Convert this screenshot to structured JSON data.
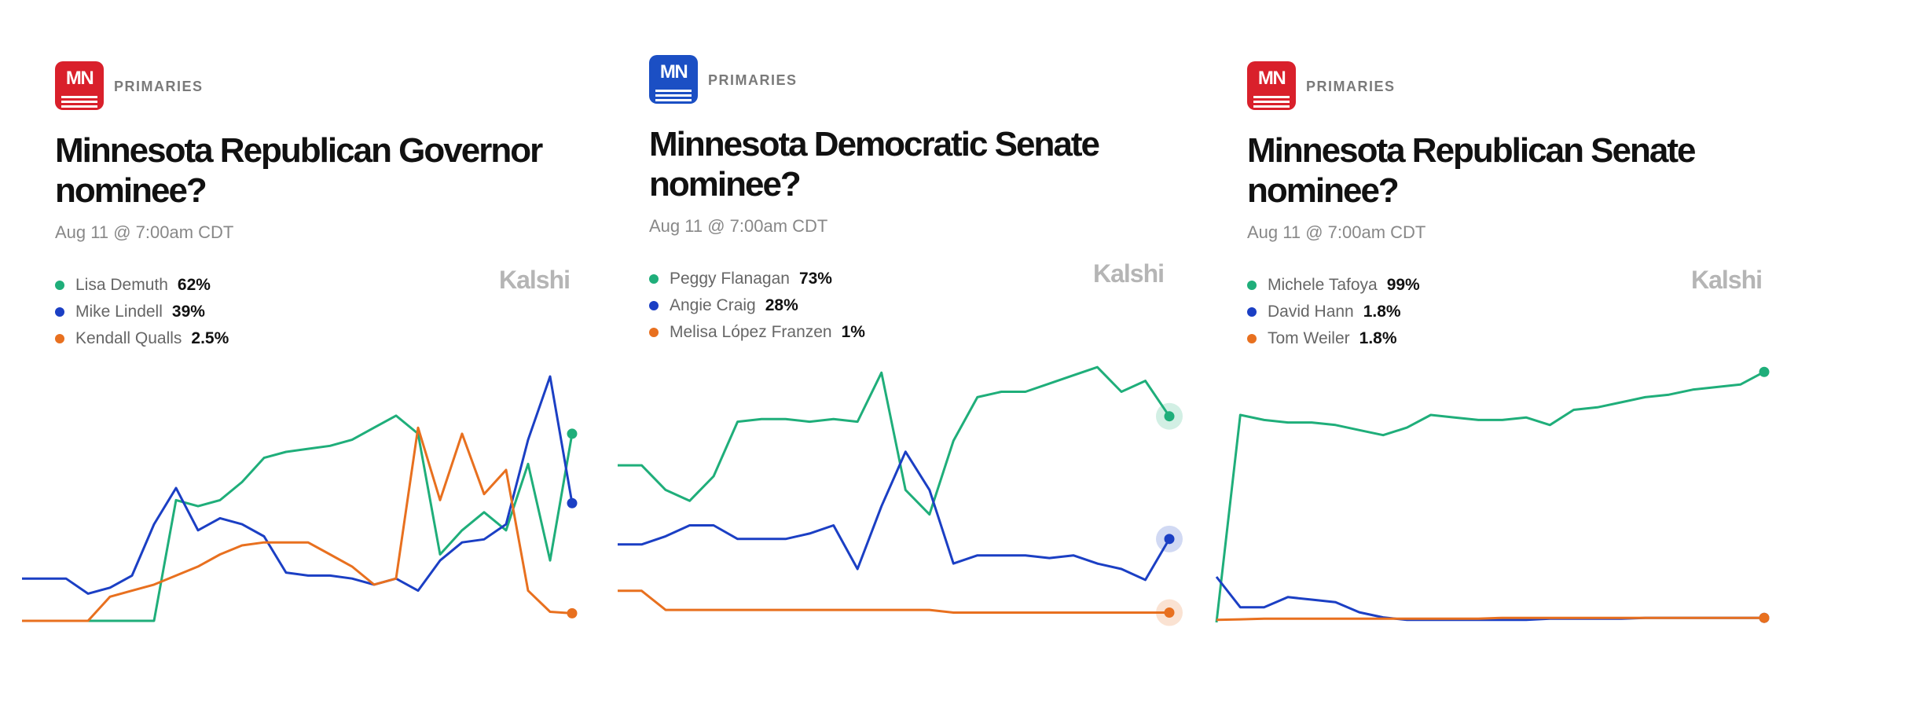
{
  "chart_data": [
    {
      "type": "line",
      "badge": "MN",
      "badge_color": "#d9202b",
      "category": "PRIMARIES",
      "title": "Minnesota Republican Governor nominee?",
      "subtitle": "Aug 11 @ 7:00am CDT",
      "source": "Kalshi",
      "ylim": [
        0,
        100
      ],
      "highlight_end": false,
      "series": [
        {
          "name": "Lisa Demuth",
          "legend_value": "62%",
          "color": "#1fae7a",
          "values": [
            0,
            0,
            0,
            0,
            0,
            0,
            0,
            40,
            38,
            40,
            46,
            54,
            56,
            57,
            58,
            60,
            64,
            68,
            62,
            22,
            30,
            36,
            30,
            52,
            20,
            62
          ]
        },
        {
          "name": "Mike Lindell",
          "legend_value": "39%",
          "color": "#1b3fc4",
          "values": [
            14,
            14,
            14,
            9,
            11,
            15,
            32,
            44,
            30,
            34,
            32,
            28,
            16,
            15,
            15,
            14,
            12,
            14,
            10,
            20,
            26,
            27,
            32,
            60,
            81,
            39
          ]
        },
        {
          "name": "Kendall Qualls",
          "legend_value": "2.5%",
          "color": "#e8701f",
          "values": [
            0,
            0,
            0,
            0,
            8,
            10,
            12,
            15,
            18,
            22,
            25,
            26,
            26,
            26,
            22,
            18,
            12,
            14,
            64,
            40,
            62,
            42,
            50,
            10,
            3,
            2.5
          ]
        }
      ]
    },
    {
      "type": "line",
      "badge": "MN",
      "badge_color": "#1b4fc4",
      "category": "PRIMARIES",
      "title": "Minnesota Democratic Senate nominee?",
      "subtitle": "Aug 11 @ 7:00am CDT",
      "source": "Kalshi",
      "ylim": [
        0,
        100
      ],
      "highlight_end": true,
      "series": [
        {
          "name": "Peggy Flanagan",
          "legend_value": "73%",
          "color": "#1fae7a",
          "values": [
            55,
            55,
            46,
            42,
            51,
            71,
            72,
            72,
            71,
            72,
            71,
            89,
            46,
            37,
            64,
            80,
            82,
            82,
            85,
            88,
            91,
            82,
            86,
            73
          ]
        },
        {
          "name": "Angie Craig",
          "legend_value": "28%",
          "color": "#1b3fc4",
          "values": [
            26,
            26,
            29,
            33,
            33,
            28,
            28,
            28,
            30,
            33,
            17,
            40,
            60,
            46,
            19,
            22,
            22,
            22,
            21,
            22,
            19,
            17,
            13,
            28
          ]
        },
        {
          "name": "Melisa López Franzen",
          "legend_value": "1%",
          "color": "#e8701f",
          "values": [
            9,
            9,
            2,
            2,
            2,
            2,
            2,
            2,
            2,
            2,
            2,
            2,
            2,
            2,
            1,
            1,
            1,
            1,
            1,
            1,
            1,
            1,
            1,
            1
          ]
        }
      ]
    },
    {
      "type": "line",
      "badge": "MN",
      "badge_color": "#d9202b",
      "category": "PRIMARIES",
      "title": "Minnesota Republican Senate nominee?",
      "subtitle": "Aug 11 @ 7:00am CDT",
      "source": "Kalshi",
      "ylim": [
        0,
        100
      ],
      "highlight_end": false,
      "series": [
        {
          "name": "Michele Tafoya",
          "legend_value": "99%",
          "color": "#1fae7a",
          "values": [
            0,
            82,
            80,
            79,
            79,
            78,
            76,
            74,
            77,
            82,
            81,
            80,
            80,
            81,
            78,
            84,
            85,
            87,
            89,
            90,
            92,
            93,
            94,
            99
          ]
        },
        {
          "name": "David Hann",
          "legend_value": "1.8%",
          "color": "#1b3fc4",
          "values": [
            18,
            6,
            6,
            10,
            9,
            8,
            4,
            2,
            1,
            1,
            1,
            1,
            1,
            1,
            1.5,
            1.5,
            1.5,
            1.5,
            1.8,
            1.8,
            1.8,
            1.8,
            1.8,
            1.8
          ]
        },
        {
          "name": "Tom Weiler",
          "legend_value": "1.8%",
          "color": "#e8701f",
          "values": [
            1,
            1.2,
            1.5,
            1.5,
            1.5,
            1.5,
            1.5,
            1.5,
            1.5,
            1.5,
            1.5,
            1.5,
            1.8,
            1.8,
            1.8,
            1.8,
            1.8,
            1.8,
            1.8,
            1.8,
            1.8,
            1.8,
            1.8,
            1.8
          ]
        }
      ]
    }
  ]
}
